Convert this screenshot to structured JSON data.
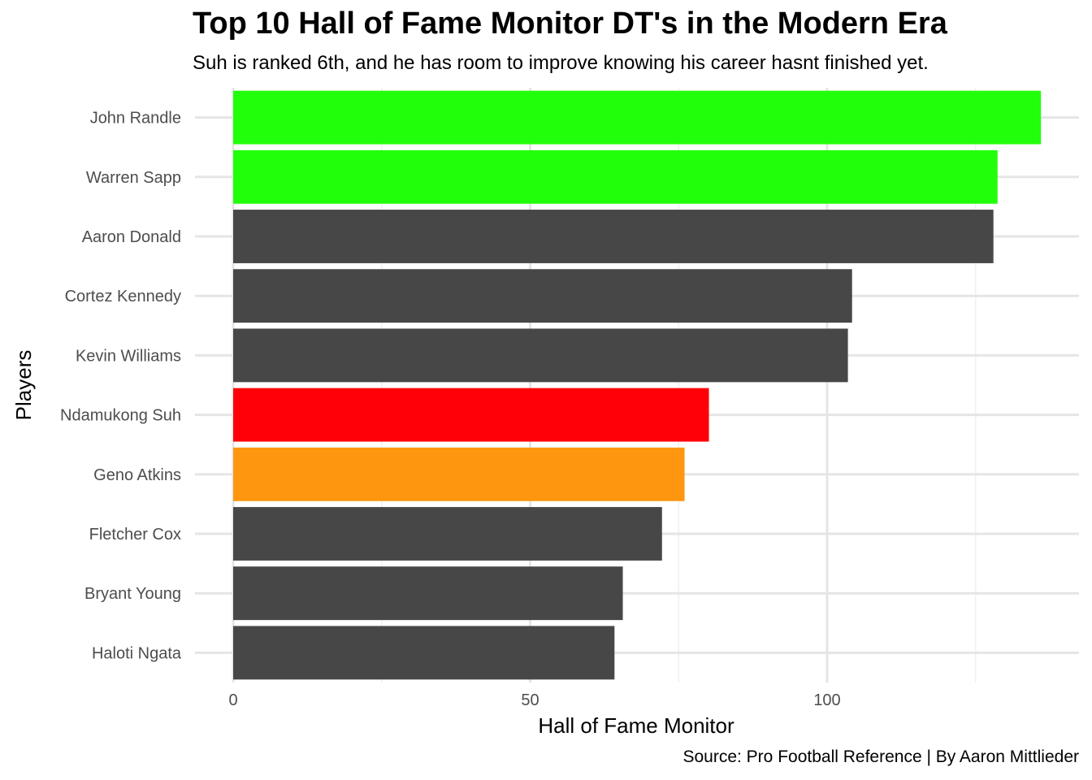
{
  "title": "Top 10 Hall of Fame Monitor DT's in the Modern Era",
  "subtitle": "Suh is ranked 6th, and he has room to improve knowing his career hasnt finished yet.",
  "caption": "Source: Pro Football Reference | By Aaron Mittlieder",
  "chart_data": {
    "type": "bar",
    "orientation": "horizontal",
    "title": "Top 10 Hall of Fame Monitor DT's in the Modern Era",
    "subtitle": "Suh is ranked 6th, and he has room to improve knowing his career hasnt finished yet.",
    "xlabel": "Hall of Fame Monitor",
    "ylabel": "Players",
    "xlim": [
      0,
      142
    ],
    "xticks": [
      0,
      50,
      100
    ],
    "grid": true,
    "legend": "none",
    "categories": [
      "John Randle",
      "Warren Sapp",
      "Aaron Donald",
      "Cortez Kennedy",
      "Kevin Williams",
      "Ndamukong Suh",
      "Geno Atkins",
      "Fletcher Cox",
      "Bryant Young",
      "Haloti Ngata"
    ],
    "values": [
      136,
      128.7,
      128,
      104.2,
      103.5,
      80.1,
      76,
      72.2,
      65.6,
      64.2
    ],
    "colors": [
      "#22ff0a",
      "#22ff0a",
      "#474747",
      "#474747",
      "#474747",
      "#ff0009",
      "#ff960f",
      "#474747",
      "#474747",
      "#474747"
    ]
  }
}
